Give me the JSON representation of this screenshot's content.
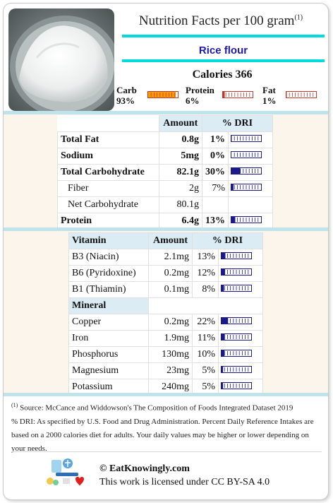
{
  "header": {
    "title": "Nutrition Facts per 100 gram",
    "title_ref": "(1)",
    "food_name": "Rice flour",
    "calories_label": "Calories 366"
  },
  "macros": [
    {
      "label": "Carb",
      "percent": "93%",
      "value": 0.93,
      "color": "#ff9900"
    },
    {
      "label": "Protein",
      "percent": "6%",
      "value": 0.06,
      "color": "#c0392b"
    },
    {
      "label": "Fat",
      "percent": "1%",
      "value": 0.01,
      "color": "#c0392b"
    }
  ],
  "nutrients_table": {
    "headers": {
      "amount": "Amount",
      "dri": "% DRI"
    },
    "rows": [
      {
        "name": "Total Fat",
        "amount": "0.8g",
        "dri": "1%",
        "dri_value": 0.01,
        "bold": true,
        "indent": false
      },
      {
        "name": "Sodium",
        "amount": "5mg",
        "dri": "0%",
        "dri_value": 0.0,
        "bold": true,
        "indent": false
      },
      {
        "name": "Total Carbohydrate",
        "amount": "82.1g",
        "dri": "30%",
        "dri_value": 0.3,
        "bold": true,
        "indent": false
      },
      {
        "name": "Fiber",
        "amount": "2g",
        "dri": "7%",
        "dri_value": 0.07,
        "bold": false,
        "indent": true
      },
      {
        "name": "Net Carbohydrate",
        "amount": "80.1g",
        "dri": "",
        "dri_value": null,
        "bold": false,
        "indent": true
      },
      {
        "name": "Protein",
        "amount": "6.4g",
        "dri": "13%",
        "dri_value": 0.13,
        "bold": true,
        "indent": false
      }
    ]
  },
  "vitamins_table": {
    "headers": {
      "name": "Vitamin",
      "amount": "Amount",
      "dri": "% DRI"
    },
    "rows": [
      {
        "name": "B3 (Niacin)",
        "amount": "2.1mg",
        "dri": "13%",
        "dri_value": 0.13
      },
      {
        "name": "B6 (Pyridoxine)",
        "amount": "0.2mg",
        "dri": "12%",
        "dri_value": 0.12
      },
      {
        "name": "B1 (Thiamin)",
        "amount": "0.1mg",
        "dri": "8%",
        "dri_value": 0.08
      }
    ],
    "mineral_header": "Mineral",
    "mineral_rows": [
      {
        "name": "Copper",
        "amount": "0.2mg",
        "dri": "22%",
        "dri_value": 0.22
      },
      {
        "name": "Iron",
        "amount": "1.9mg",
        "dri": "11%",
        "dri_value": 0.11
      },
      {
        "name": "Phosphorus",
        "amount": "130mg",
        "dri": "10%",
        "dri_value": 0.1
      },
      {
        "name": "Magnesium",
        "amount": "23mg",
        "dri": "5%",
        "dri_value": 0.05
      },
      {
        "name": "Potassium",
        "amount": "240mg",
        "dri": "5%",
        "dri_value": 0.05
      }
    ]
  },
  "footnote": {
    "ref": "(1)",
    "source": "Source: McCance and Widdowson's The Composition of Foods Integrated Dataset 2019",
    "dri_text": "% DRI: As specified by U.S. Food and Drug Administration. Percent Daily Reference Intakes are based on a 2000 calories diet for adults. Your daily values may be higher or lower depending on your needs."
  },
  "footer": {
    "site": "© EatKnowingly.com",
    "license": "This work is licensed under CC BY-SA 4.0"
  },
  "colors": {
    "accent": "#00dcdc",
    "food_name": "#1e1aa6",
    "bar": "#1a1a8c",
    "table_header": "#dcecf4"
  }
}
